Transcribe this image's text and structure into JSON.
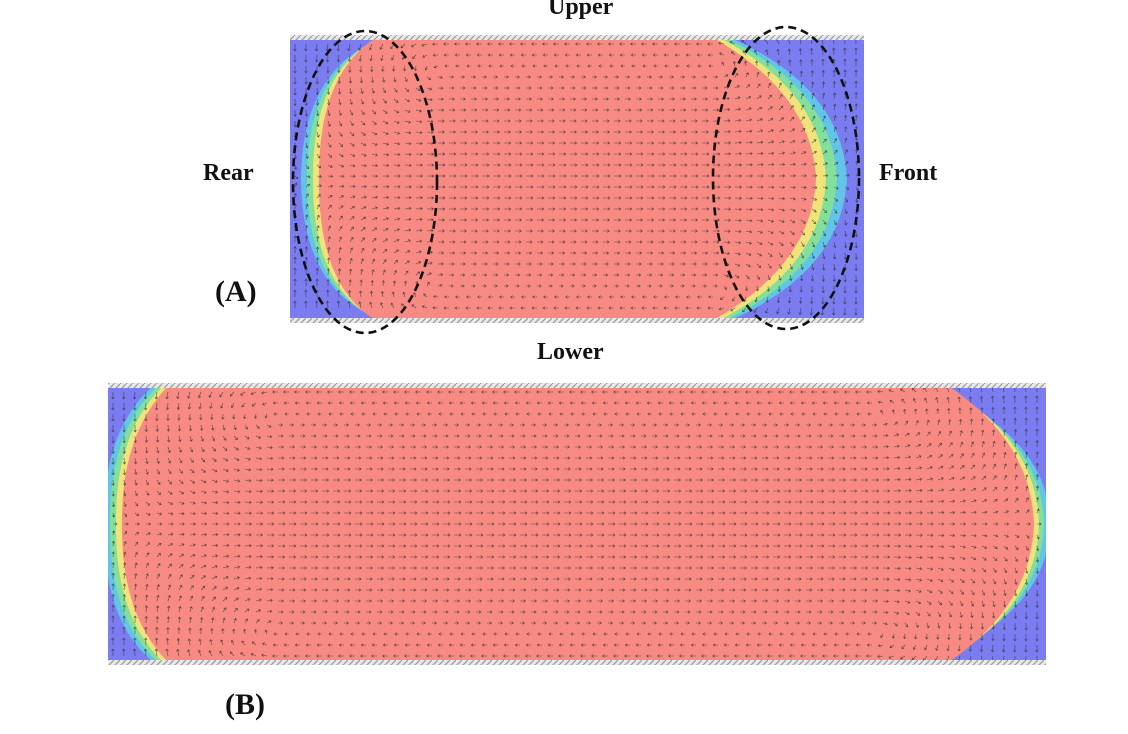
{
  "labels": {
    "upper": "Upper",
    "lower": "Lower",
    "rear": "Rear",
    "front": "Front",
    "panel_a": "(A)",
    "panel_b": "(B)"
  },
  "colors": {
    "liquid": "#f78a82",
    "gas": "#7b7cf0",
    "interface_mid": "#f2e27a",
    "interface_green": "#83e09a",
    "interface_cyan": "#62c4e6",
    "wall": "#b3b3b3",
    "arrow": "#2a2a2a",
    "region_outline": "#111111"
  },
  "panels": [
    {
      "id": "A",
      "name": "panel-a",
      "highlighted_regions": [
        "rear",
        "front"
      ]
    },
    {
      "id": "B",
      "name": "panel-b",
      "highlighted_regions": []
    }
  ]
}
